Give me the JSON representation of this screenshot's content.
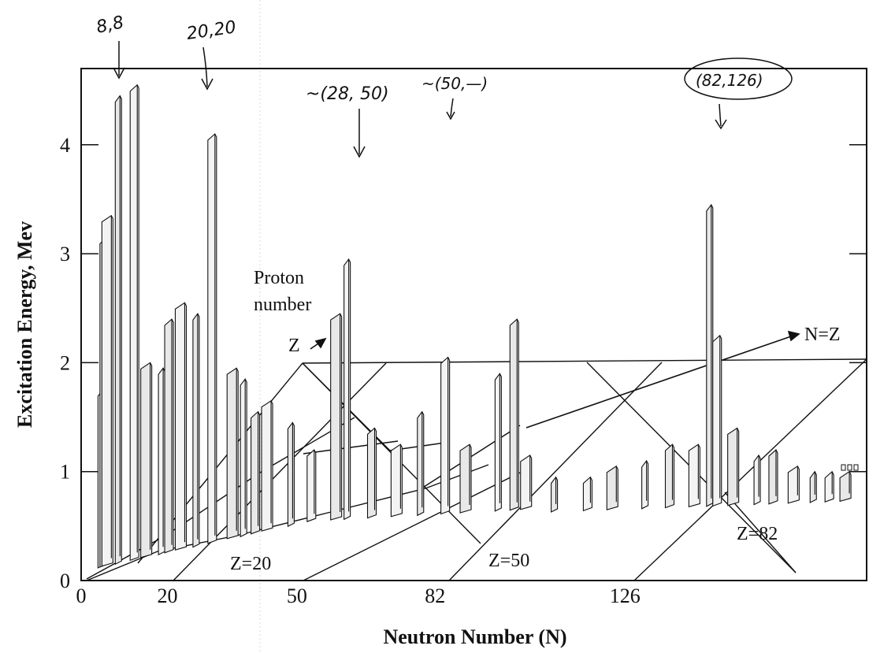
{
  "chart_data": {
    "type": "area",
    "ylabel": "Excitation Energy, Mev",
    "xlabel": "Neutron Number (N)",
    "x_ticks": [
      "0",
      "20",
      "50",
      "82",
      "126"
    ],
    "x_tick_values": [
      0,
      20,
      50,
      82,
      126
    ],
    "y_ticks": [
      "0",
      "1",
      "2",
      "3",
      "4"
    ],
    "y_tick_values": [
      0,
      1,
      2,
      3,
      4
    ],
    "xlim": [
      0,
      182
    ],
    "ylim": [
      0,
      4.7
    ],
    "grid": false,
    "perspective_labels": {
      "proton_number": [
        "Proton",
        "number"
      ],
      "z_axis": "Z",
      "n_eq_z": "N=Z",
      "z20": "Z=20",
      "z50": "Z=50",
      "z82": "Z=82"
    },
    "peaks": [
      {
        "n": 5,
        "e": 1.75
      },
      {
        "n": 6,
        "e": 3.15
      },
      {
        "n": 7,
        "e": 3.35
      },
      {
        "n": 9,
        "e": 4.45
      },
      {
        "n": 13,
        "e": 4.55
      },
      {
        "n": 16,
        "e": 2.0
      },
      {
        "n": 19,
        "e": 1.95
      },
      {
        "n": 21,
        "e": 2.4
      },
      {
        "n": 24,
        "e": 2.55
      },
      {
        "n": 27,
        "e": 2.45
      },
      {
        "n": 31,
        "e": 4.1
      },
      {
        "n": 36,
        "e": 1.95
      },
      {
        "n": 38,
        "e": 1.85
      },
      {
        "n": 41,
        "e": 1.55
      },
      {
        "n": 44,
        "e": 1.65
      },
      {
        "n": 49,
        "e": 1.45
      },
      {
        "n": 54,
        "e": 1.2
      },
      {
        "n": 60,
        "e": 2.45
      },
      {
        "n": 62,
        "e": 2.95
      },
      {
        "n": 68,
        "e": 1.4
      },
      {
        "n": 74,
        "e": 1.25
      },
      {
        "n": 79,
        "e": 1.55
      },
      {
        "n": 85,
        "e": 2.05
      },
      {
        "n": 90,
        "e": 1.25
      },
      {
        "n": 97,
        "e": 1.9
      },
      {
        "n": 101,
        "e": 2.4
      },
      {
        "n": 104,
        "e": 1.15
      },
      {
        "n": 110,
        "e": 0.95
      },
      {
        "n": 118,
        "e": 0.95
      },
      {
        "n": 124,
        "e": 1.05
      },
      {
        "n": 131,
        "e": 1.1
      },
      {
        "n": 137,
        "e": 1.25
      },
      {
        "n": 143,
        "e": 1.25
      },
      {
        "n": 146,
        "e": 3.45
      },
      {
        "n": 148,
        "e": 2.25
      },
      {
        "n": 152,
        "e": 1.4
      },
      {
        "n": 157,
        "e": 1.15
      },
      {
        "n": 161,
        "e": 1.2
      },
      {
        "n": 166,
        "e": 1.05
      },
      {
        "n": 170,
        "e": 1.0
      },
      {
        "n": 174,
        "e": 1.0
      },
      {
        "n": 178,
        "e": 1.0
      }
    ]
  },
  "annotations": {
    "a1": "8,8",
    "a2": "20,20",
    "a3": "~(28, 50)",
    "a4": "~(50,—)",
    "a5": "(82,126)"
  }
}
